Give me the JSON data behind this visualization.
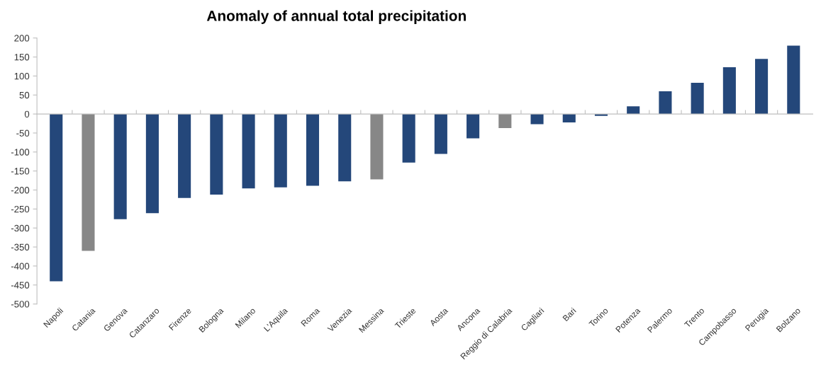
{
  "chart_data": {
    "type": "bar",
    "title": "Anomaly of annual total precipitation",
    "categories": [
      "Napoli",
      "Catania",
      "Genova",
      "Catanzaro",
      "Firenze",
      "Bologna",
      "Milano",
      "L'Aquila",
      "Roma",
      "Venezia",
      "Messina",
      "Trieste",
      "Aosta",
      "Ancona",
      "Reggio di Calabria",
      "Cagliari",
      "Bari",
      "Torino",
      "Potenza",
      "Palermo",
      "Trento",
      "Campobasso",
      "Perugia",
      "Bolzano"
    ],
    "values": [
      -440,
      -360,
      -277,
      -261,
      -221,
      -212,
      -196,
      -193,
      -189,
      -177,
      -172,
      -128,
      -105,
      -64,
      -37,
      -27,
      -22,
      -5,
      20,
      60,
      82,
      123,
      145,
      180
    ],
    "colors": [
      "#24477a",
      "#878787",
      "#24477a",
      "#24477a",
      "#24477a",
      "#24477a",
      "#24477a",
      "#24477a",
      "#24477a",
      "#24477a",
      "#878787",
      "#24477a",
      "#24477a",
      "#24477a",
      "#878787",
      "#24477a",
      "#24477a",
      "#24477a",
      "#24477a",
      "#24477a",
      "#24477a",
      "#24477a",
      "#24477a",
      "#24477a"
    ],
    "ylim": [
      -500,
      200
    ],
    "yticks": [
      -500,
      -450,
      -400,
      -350,
      -300,
      -250,
      -200,
      -150,
      -100,
      -50,
      0,
      50,
      100,
      150,
      200
    ],
    "legend": false
  }
}
